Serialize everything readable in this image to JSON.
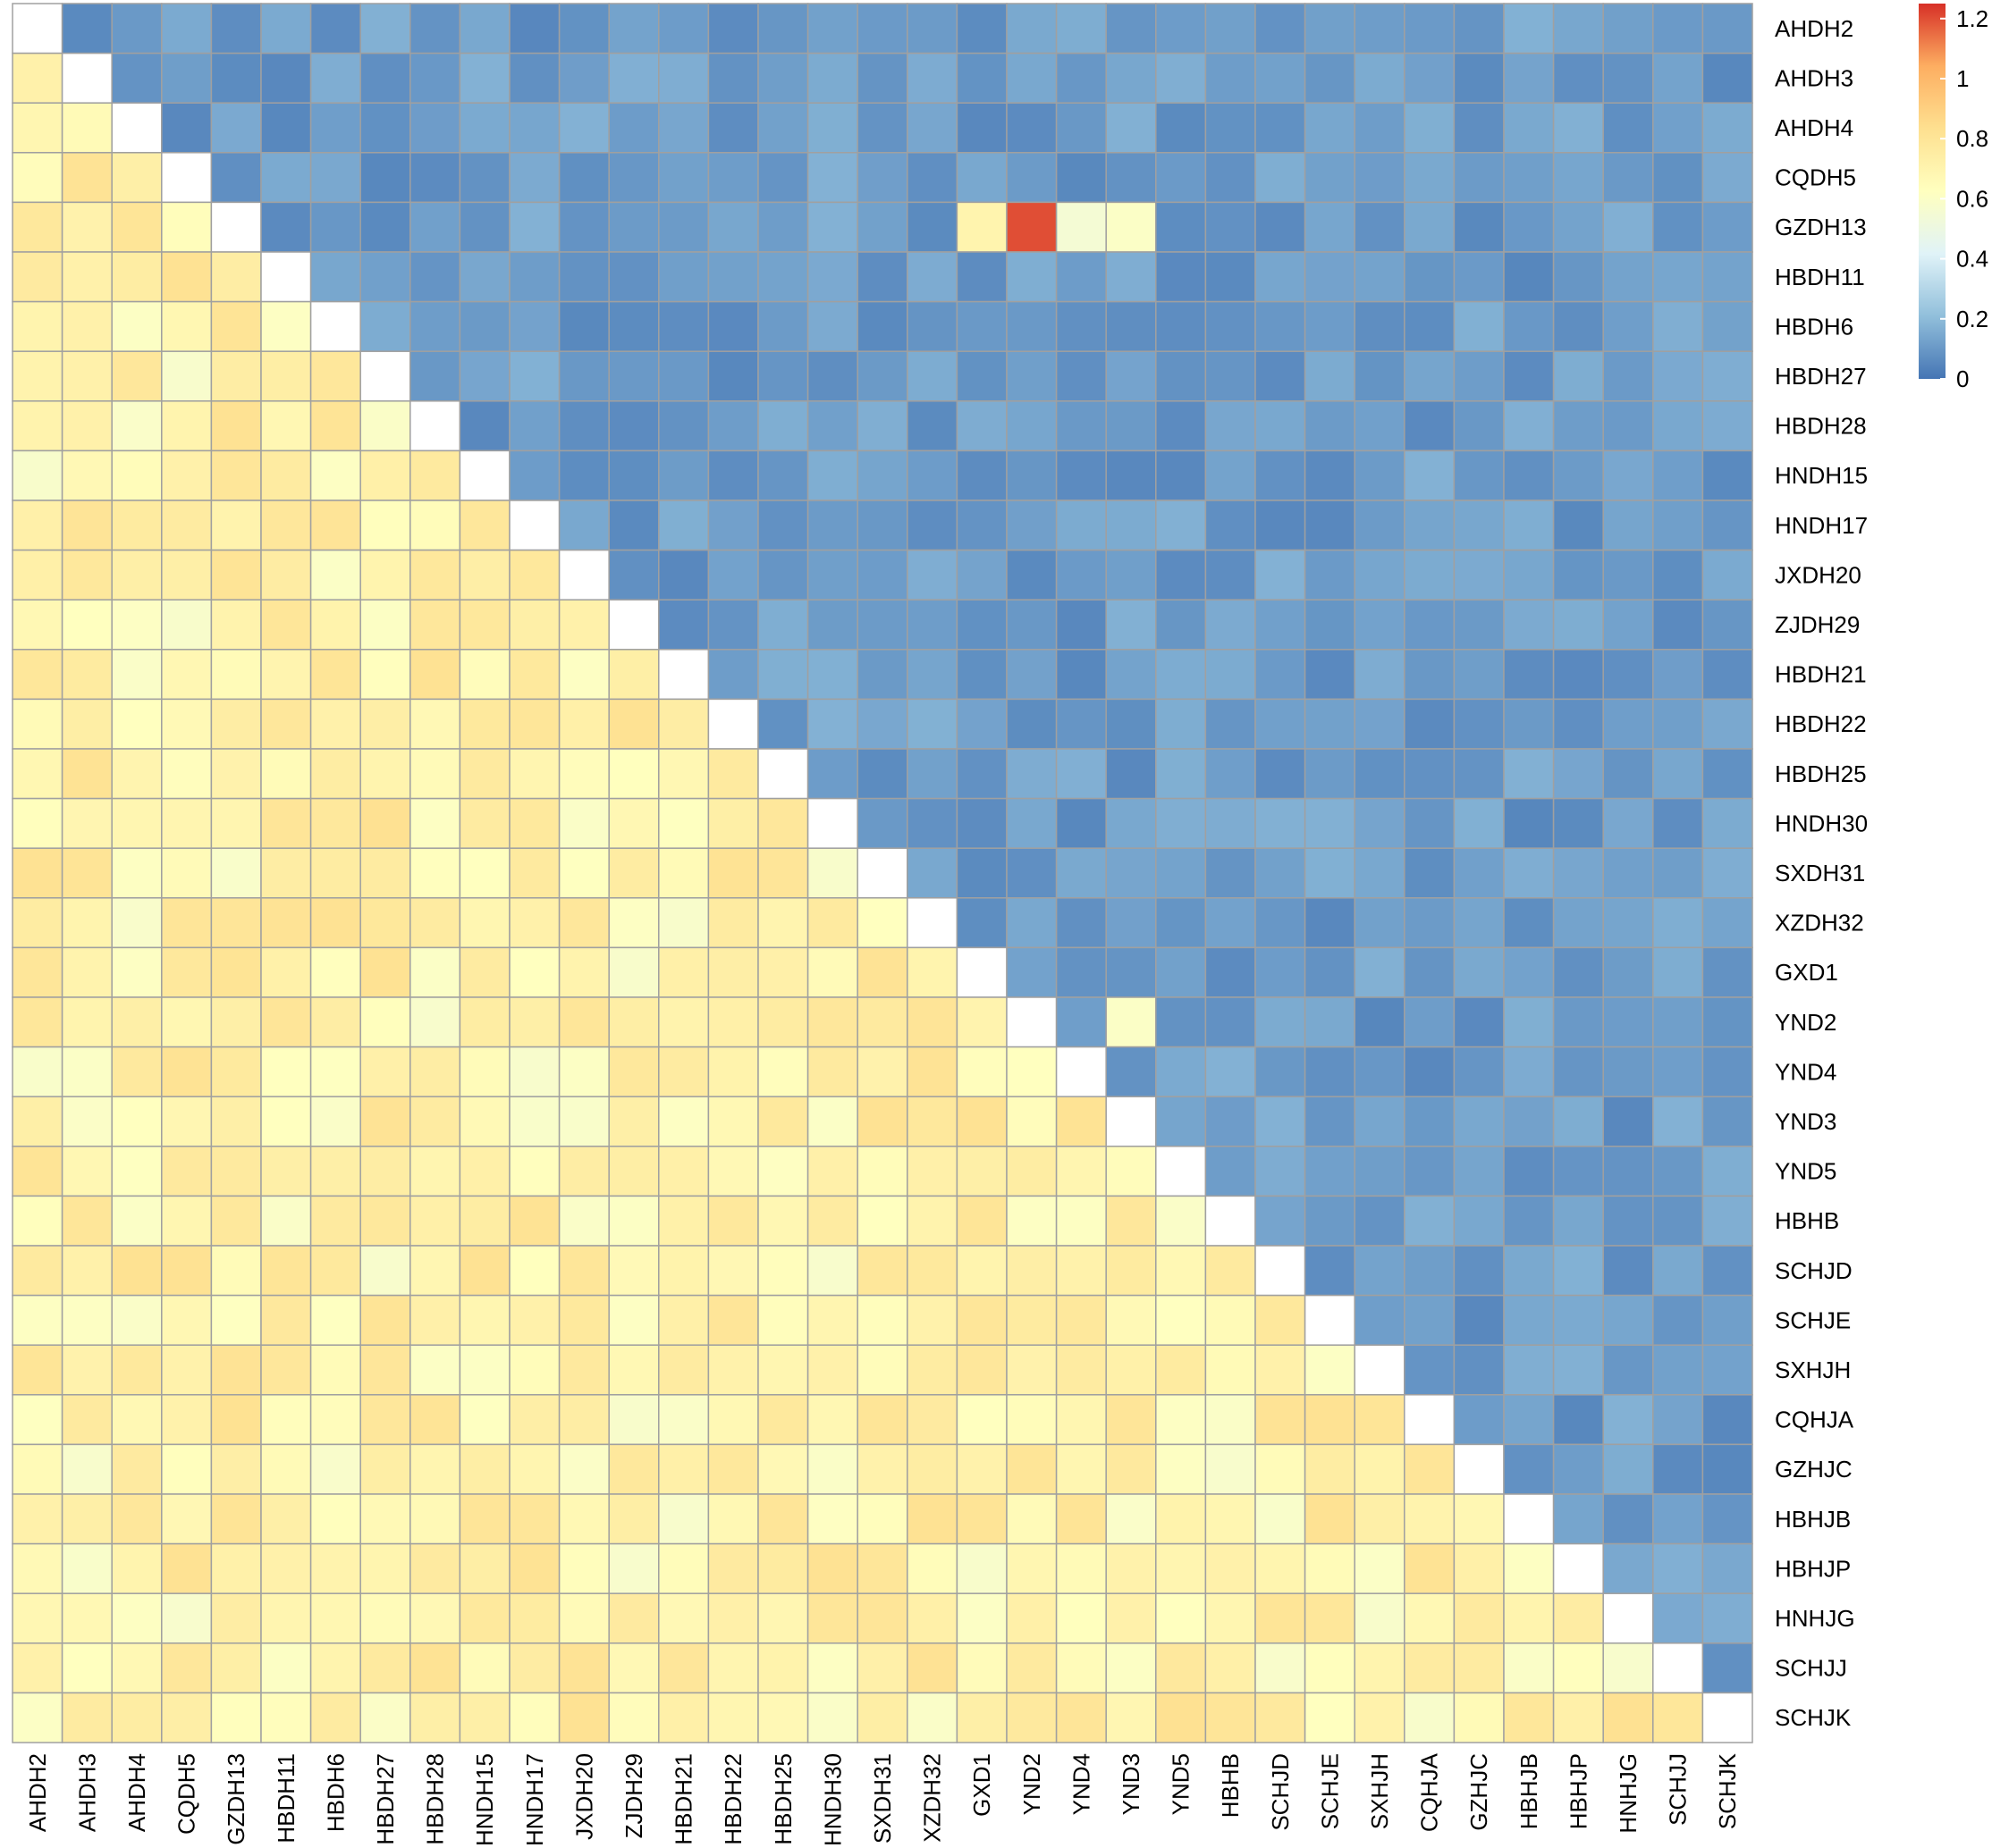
{
  "chart_data": {
    "type": "heatmap",
    "title": "",
    "labels": [
      "AHDH2",
      "AHDH3",
      "AHDH4",
      "CQDH5",
      "GZDH13",
      "HBDH11",
      "HBDH6",
      "HBDH27",
      "HBDH28",
      "HNDH15",
      "HNDH17",
      "JXDH20",
      "ZJDH29",
      "HBDH21",
      "HBDH22",
      "HBDH25",
      "HNDH30",
      "SXDH31",
      "XZDH32",
      "GXD1",
      "YND2",
      "YND4",
      "YND3",
      "YND5",
      "HBHB",
      "SCHJD",
      "SCHJE",
      "SXHJH",
      "CQHJA",
      "GZHJC",
      "HBHJB",
      "HBHJP",
      "HNHJG",
      "SCHJJ",
      "SCHJK"
    ],
    "diagonal": "blank",
    "lower_triangle_level": 0.7,
    "upper_triangle_level": 0.05,
    "notable_upper_cells": [
      {
        "row": "GZDH13",
        "col": "GXD1",
        "value": 0.7
      },
      {
        "row": "GZDH13",
        "col": "YND2",
        "value": 1.2
      },
      {
        "row": "GZDH13",
        "col": "YND4",
        "value": 0.55
      },
      {
        "row": "GZDH13",
        "col": "YND3",
        "value": 0.6
      },
      {
        "row": "YND2",
        "col": "YND3",
        "value": 0.6
      }
    ],
    "colorbar": {
      "range": [
        0,
        1.25
      ],
      "ticks": [
        "0",
        "0.2",
        "0.4",
        "0.6",
        "0.8",
        "1",
        "1.2"
      ],
      "colors": [
        "#4575b4",
        "#91bfdb",
        "#e0f3f8",
        "#ffffbf",
        "#fee090",
        "#fdae61",
        "#d73027"
      ]
    },
    "cell_border_color": "#a0a0a0"
  }
}
